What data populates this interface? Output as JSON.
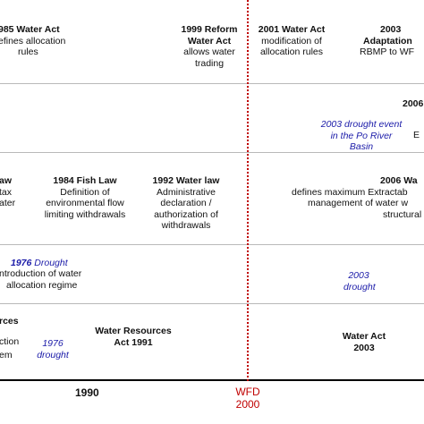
{
  "rows": {
    "r1": {
      "e1985": {
        "title": "985 Water Act",
        "desc": [
          "efines allocation",
          "rules"
        ]
      },
      "e1999": {
        "title": [
          "1999 Reform",
          "Water Act"
        ],
        "desc": [
          "allows water",
          "trading"
        ]
      },
      "e2001": {
        "title": "2001 Water Act",
        "desc": [
          "modification of",
          "allocation rules"
        ]
      },
      "e2003": {
        "title": [
          "2003",
          "Adaptation"
        ],
        "desc": [
          "RBMP to WF"
        ]
      }
    },
    "r2": {
      "e2006": {
        "title": "2006"
      },
      "drought2003": [
        "2003 drought event",
        "in the Po River",
        "Basin"
      ],
      "edge": "E"
    },
    "r3": {
      "left": {
        "title": "aw",
        "desc": [
          "tax",
          "ater"
        ]
      },
      "e1984": {
        "title": "1984 Fish Law",
        "desc": [
          "Definition of",
          "environmental flow",
          "limiting withdrawals"
        ]
      },
      "e1992": {
        "title": "1992 Water law",
        "desc": [
          "Administrative",
          "declaration /",
          "authorization of",
          "withdrawals"
        ]
      },
      "e2006": {
        "title": "2006 Wa",
        "desc": [
          "defines maximum Extractab",
          "management of water w",
          "structural"
        ]
      }
    },
    "r4": {
      "drought1976": {
        "year": "1976",
        "word": "Drought"
      },
      "left": [
        "ntroduction of water",
        "allocation regime"
      ],
      "drought2003": [
        "2003",
        "drought"
      ]
    },
    "r5": {
      "left": [
        "rces",
        "ction",
        "em"
      ],
      "drought1976": [
        "1976",
        "drought"
      ],
      "wra1991": [
        "Water Resources",
        "Act 1991"
      ],
      "wa2003": [
        "Water Act",
        "2003"
      ]
    }
  },
  "axis": {
    "year1990": "1990",
    "wfd_label": "WFD",
    "wfd_year": "2000"
  },
  "colors": {
    "drought_text": "#1a1aa8",
    "wfd_red": "#c00000",
    "grid": "#b9b9b9"
  }
}
